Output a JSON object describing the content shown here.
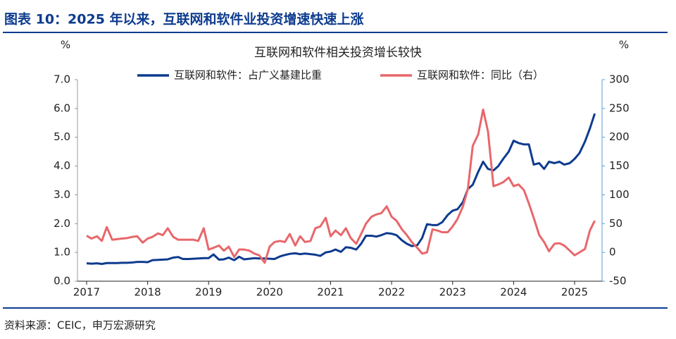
{
  "header": "图表 10：2025 年以来，互联网和软件业投资增速快速上涨",
  "source": "资料来源：CEIC，申万宏源研究",
  "chart_data": {
    "type": "line",
    "title": "互联网和软件相关投资增长较快",
    "y_label": "%",
    "y2_label": "%",
    "x": [
      2017,
      2017.08,
      2017.17,
      2017.25,
      2017.33,
      2017.42,
      2017.5,
      2017.58,
      2017.67,
      2017.75,
      2017.83,
      2017.92,
      2018,
      2018.08,
      2018.17,
      2018.25,
      2018.33,
      2018.42,
      2018.5,
      2018.58,
      2018.67,
      2018.75,
      2018.83,
      2018.92,
      2019,
      2019.08,
      2019.17,
      2019.25,
      2019.33,
      2019.42,
      2019.5,
      2019.58,
      2019.67,
      2019.75,
      2019.83,
      2019.92,
      2020,
      2020.08,
      2020.17,
      2020.25,
      2020.33,
      2020.42,
      2020.5,
      2020.58,
      2020.67,
      2020.75,
      2020.83,
      2020.92,
      2021,
      2021.08,
      2021.17,
      2021.25,
      2021.33,
      2021.42,
      2021.5,
      2021.58,
      2021.67,
      2021.75,
      2021.83,
      2021.92,
      2022,
      2022.08,
      2022.17,
      2022.25,
      2022.33,
      2022.42,
      2022.5,
      2022.58,
      2022.67,
      2022.75,
      2022.83,
      2022.92,
      2023,
      2023.08,
      2023.17,
      2023.25,
      2023.33,
      2023.42,
      2023.5,
      2023.58,
      2023.67,
      2023.75,
      2023.83,
      2023.92,
      2024,
      2024.08,
      2024.17,
      2024.25,
      2024.33,
      2024.42,
      2024.5,
      2024.58,
      2024.67,
      2024.75,
      2024.83,
      2024.92,
      2025,
      2025.08,
      2025.17,
      2025.25,
      2025.33
    ],
    "series": [
      {
        "name": "互联网和软件：占广义基建比重",
        "color": "#0d3b8e",
        "axis": "y",
        "values": [
          0.62,
          0.61,
          0.62,
          0.6,
          0.63,
          0.63,
          0.63,
          0.64,
          0.64,
          0.65,
          0.67,
          0.67,
          0.66,
          0.73,
          0.74,
          0.75,
          0.76,
          0.82,
          0.84,
          0.77,
          0.77,
          0.78,
          0.79,
          0.8,
          0.8,
          0.93,
          0.75,
          0.76,
          0.82,
          0.73,
          0.85,
          0.76,
          0.78,
          0.8,
          0.79,
          0.79,
          0.78,
          0.77,
          0.86,
          0.91,
          0.95,
          0.97,
          0.94,
          0.96,
          0.94,
          0.92,
          0.88,
          1.0,
          1.03,
          1.1,
          1.02,
          1.18,
          1.16,
          1.1,
          1.3,
          1.58,
          1.58,
          1.55,
          1.6,
          1.67,
          1.65,
          1.6,
          1.42,
          1.3,
          1.22,
          1.25,
          1.5,
          1.98,
          1.95,
          1.95,
          2.05,
          2.3,
          2.45,
          2.5,
          2.75,
          3.2,
          3.35,
          3.8,
          4.15,
          3.9,
          3.85,
          4.0,
          4.25,
          4.5,
          4.88,
          4.8,
          4.75,
          4.75,
          4.05,
          4.1,
          3.9,
          4.15,
          4.1,
          4.15,
          4.05,
          4.1,
          4.25,
          4.45,
          4.85,
          5.3,
          5.82
        ]
      },
      {
        "name": "互联网和软件：同比（右）",
        "color": "#e8676b",
        "axis": "y2",
        "values": [
          29,
          24,
          28,
          20,
          44,
          22,
          23,
          24,
          25,
          27,
          28,
          17,
          24,
          27,
          33,
          30,
          42,
          27,
          22,
          22,
          22,
          22,
          20,
          42,
          5,
          8,
          12,
          3,
          10,
          -8,
          5,
          5,
          3,
          -2,
          -5,
          -18,
          10,
          18,
          20,
          18,
          32,
          12,
          28,
          18,
          20,
          42,
          45,
          60,
          28,
          38,
          30,
          42,
          25,
          15,
          32,
          50,
          62,
          66,
          68,
          80,
          62,
          55,
          40,
          30,
          18,
          8,
          -2,
          0,
          40,
          38,
          35,
          35,
          45,
          58,
          80,
          110,
          185,
          205,
          248,
          210,
          115,
          118,
          122,
          130,
          115,
          118,
          108,
          85,
          60,
          30,
          18,
          2,
          15,
          16,
          12,
          3,
          -5,
          0,
          6,
          38,
          55
        ]
      }
    ],
    "xlim": [
      2016.85,
      2025.45
    ],
    "xticks": [
      2017,
      2018,
      2019,
      2020,
      2021,
      2022,
      2023,
      2024,
      2025
    ],
    "ylim": [
      0,
      7
    ],
    "yticks": [
      {
        "value": 0,
        "label": "0.0"
      },
      {
        "value": 1,
        "label": "1.0"
      },
      {
        "value": 2,
        "label": "2.0"
      },
      {
        "value": 3,
        "label": "3.0"
      },
      {
        "value": 4,
        "label": "4.0"
      },
      {
        "value": 5,
        "label": "5.0"
      },
      {
        "value": 6,
        "label": "6.0"
      },
      {
        "value": 7,
        "label": "7.0"
      }
    ],
    "y2lim": [
      -50,
      300
    ],
    "y2ticks": [
      -50,
      0,
      50,
      100,
      150,
      200,
      250,
      300
    ]
  }
}
